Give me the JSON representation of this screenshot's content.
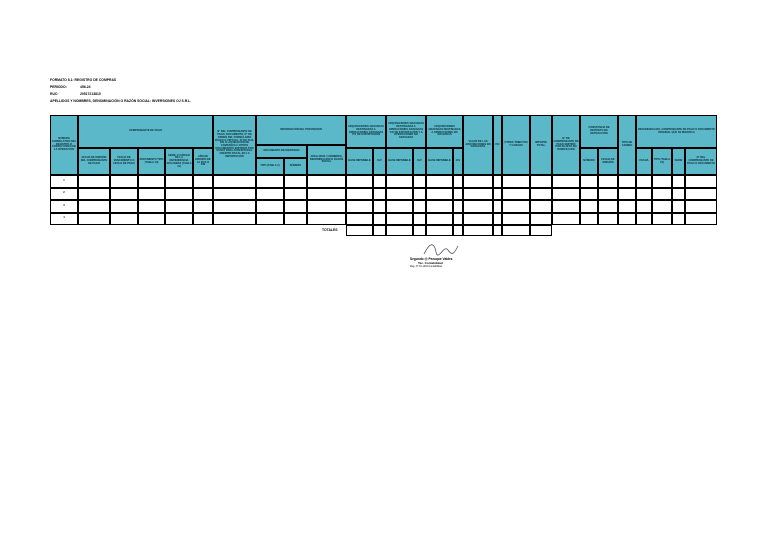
{
  "header": {
    "format": "FORMATO 8.1: REGISTRO DE COMPRAS",
    "periodo_label": "PERIODO:",
    "periodo": "456-24",
    "ruc_label": "RUC:",
    "ruc": "20517213810",
    "razon": "APELLIDOS Y NOMBRES, DENOMINACIÓN O RAZÓN SOCIAL: INVERSIONES OJ S.R.L."
  },
  "table": {
    "columns": [
      "NUMERO CORRELATIVO DEL REGISTRO O CÓDIGO UNICO DE LA OPERACIÓN",
      "COMPROBANTE DE PAGO",
      "FECHA DE EMISIÓN DEL COMPROBANTE DE PAGO",
      "FECHA DE VENCIMIENTO O FECHA DE PAGO",
      "DOCUMENTO TIPO (TABLA 10)",
      "SERIE O CÓDIGO DE LA DEPENDENCIA ADUANERA (TABLA 11)",
      "AÑO DE EMISIÓN DE LA DUA O DSI",
      "N° DEL COMPROBANTE DE PAGO, DOCUMENTO, N° DE ORDEN DEL FORMULARIO FÍSICO O VIRTUAL, N° DE DUA, DSI O LIQUIDACIÓN DE COBRANZA U OTROS DOCUMENTOS EMITIDOS POR SUNAT PARA ACREDITAR EL CRÉDITO FISCAL EN LA IMPORTACIÓN",
      "INFORMACIÓN DEL PROVEEDOR",
      "DOCUMENTO DE IDENTIDAD",
      "TIPO (TABLA 2)",
      "NÚMERO",
      "APELLIDOS Y NOMBRES, DENOMINACIÓN O RAZÓN SOCIAL",
      "ADQUISICIONES GRAVADAS DESTINADAS A OPERACIONES GRAVADAS Y/O DE EXPORTACIÓN",
      "BASE IMPONIBLE",
      "IGV",
      "ADQUISICIONES GRAVADAS DESTINADAS A OPERACIONES GRAVADAS Y/O DE EXPORTACIÓN Y A OPERACIONES NO GRAVADAS",
      "BASE IMPONIBLE",
      "IGV",
      "ADQUISICIONES GRAVADAS DESTINADAS A OPERACIONES NO GRAVADAS",
      "BASE IMPONIBLE",
      "IGV",
      "VALOR DE LAS ADQUISICIONES NO GRAVADAS",
      "ISC",
      "OTROS TRIBUTOS Y CARGOS",
      "IMPORTE TOTAL",
      "N° DE COMPROBANTE DE PAGO EMITIDO POR SUJETO NO DOMICILIADO",
      "CONSTANCIA DE DEPÓSITO DE DETRACCIÓN",
      "NÚMERO",
      "FECHA DE EMISIÓN",
      "TIPO DE CAMBIO",
      "REFERENCIA DEL COMPROBANTE DE PAGO O DOCUMENTO ORIGINAL QUE SE MODIFICA",
      "FECHA",
      "TIPO (TABLA 10)",
      "SERIE",
      "N° DEL COMPROBANTE DE PAGO O DOCUMENTO"
    ],
    "row_numbers": [
      "1",
      "2",
      "3",
      "4"
    ],
    "totals_label": "TOTALES"
  },
  "signature": {
    "name": "Segundo @ Pezuque Valdez",
    "role": "Tec. Contabilidad",
    "note": "Reg. N° 10-1234 Contabilidad"
  }
}
